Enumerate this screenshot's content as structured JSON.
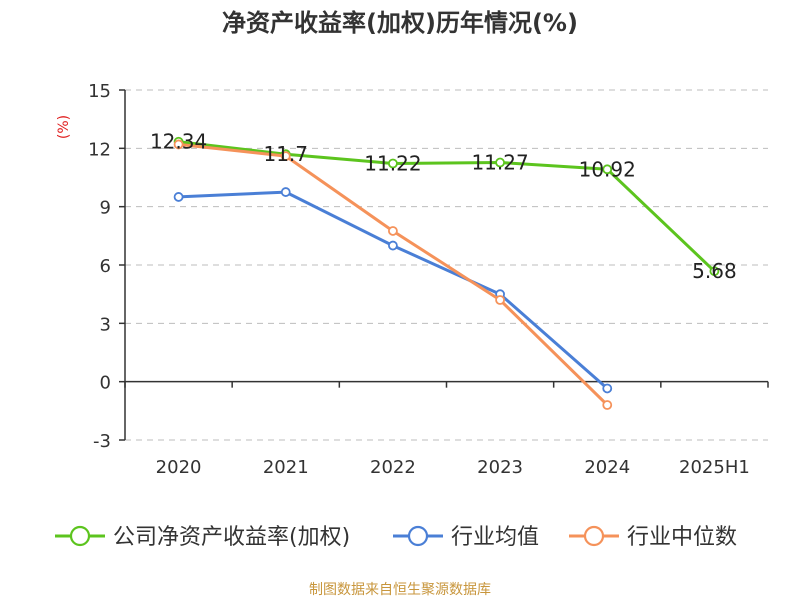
{
  "chart_data": {
    "type": "line",
    "title": "净资产收益率(加权)历年情况(%)",
    "ylabel": "(%)",
    "xlabel": "",
    "categories": [
      "2020",
      "2021",
      "2022",
      "2023",
      "2024",
      "2025H1"
    ],
    "ylim": [
      -3,
      15
    ],
    "yticks": [
      -3,
      0,
      3,
      6,
      9,
      12,
      15
    ],
    "grid": true,
    "legend_position": "bottom",
    "series": [
      {
        "name": "公司净资产收益率(加权)",
        "color": "#5cc41e",
        "values": [
          12.34,
          11.7,
          11.22,
          11.27,
          10.92,
          5.68
        ],
        "labels": [
          "12.34",
          "11.7",
          "11.22",
          "11.27",
          "10.92",
          "5.68"
        ]
      },
      {
        "name": "行业均值",
        "color": "#4a7fd6",
        "values": [
          9.5,
          9.75,
          7.0,
          4.5,
          -0.35,
          null
        ]
      },
      {
        "name": "行业中位数",
        "color": "#f5925a",
        "values": [
          12.2,
          11.6,
          7.75,
          4.2,
          -1.2,
          null
        ]
      }
    ],
    "source": "制图数据来自恒生聚源数据库"
  }
}
